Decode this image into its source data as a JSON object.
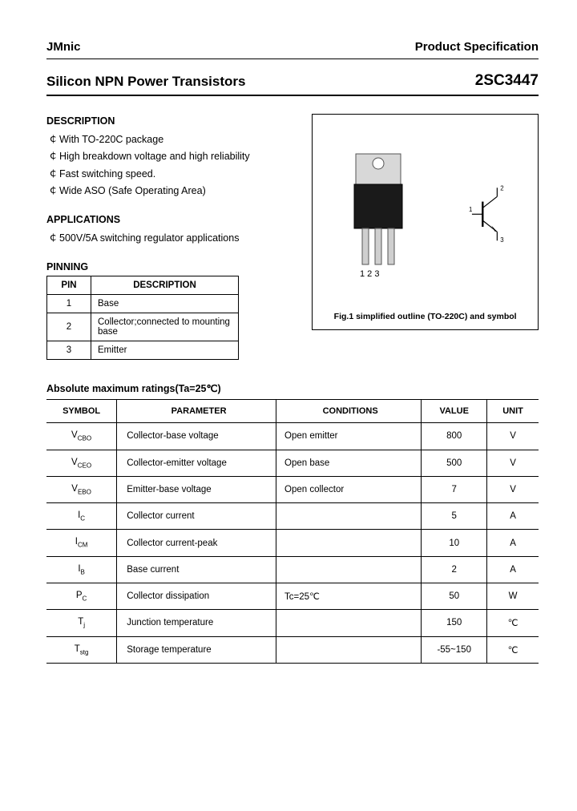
{
  "header": {
    "brand": "JMnic",
    "spec_label": "Product Specification"
  },
  "title_row": {
    "title": "Silicon NPN Power Transistors",
    "part": "2SC3447"
  },
  "description": {
    "heading": "DESCRIPTION",
    "items": [
      "With TO-220C package",
      "High breakdown voltage and high reliability",
      "Fast switching speed.",
      "Wide ASO (Safe Operating Area)"
    ]
  },
  "applications": {
    "heading": "APPLICATIONS",
    "items": [
      "500V/5A switching regulator applications"
    ]
  },
  "pinning": {
    "heading": "PINNING",
    "columns": [
      "PIN",
      "DESCRIPTION"
    ],
    "rows": [
      {
        "pin": "1",
        "desc": "Base"
      },
      {
        "pin": "2",
        "desc": "Collector;connected to mounting base"
      },
      {
        "pin": "3",
        "desc": "Emitter"
      }
    ]
  },
  "figure": {
    "caption": "Fig.1 simplified outline (TO-220C) and symbol",
    "pin_labels": "1  2  3",
    "sym_labels": {
      "b": "1",
      "c": "2",
      "e": "3"
    },
    "package_colors": {
      "body": "#1a1a1a",
      "tab": "#d8d8d8",
      "lead": "#cfcfcf"
    }
  },
  "abs_ratings": {
    "title": "Absolute maximum ratings(Ta=25℃)",
    "columns": [
      "SYMBOL",
      "PARAMETER",
      "CONDITIONS",
      "VALUE",
      "UNIT"
    ],
    "rows": [
      {
        "sym": "V",
        "sub": "CBO",
        "param": "Collector-base voltage",
        "cond": "Open emitter",
        "val": "800",
        "unit": "V"
      },
      {
        "sym": "V",
        "sub": "CEO",
        "param": "Collector-emitter voltage",
        "cond": "Open base",
        "val": "500",
        "unit": "V"
      },
      {
        "sym": "V",
        "sub": "EBO",
        "param": "Emitter-base voltage",
        "cond": "Open collector",
        "val": "7",
        "unit": "V"
      },
      {
        "sym": "I",
        "sub": "C",
        "param": "Collector current",
        "cond": "",
        "val": "5",
        "unit": "A"
      },
      {
        "sym": "I",
        "sub": "CM",
        "param": "Collector current-peak",
        "cond": "",
        "val": "10",
        "unit": "A"
      },
      {
        "sym": "I",
        "sub": "B",
        "param": "Base current",
        "cond": "",
        "val": "2",
        "unit": "A"
      },
      {
        "sym": "P",
        "sub": "C",
        "param": "Collector dissipation",
        "cond": "Tc=25℃",
        "val": "50",
        "unit": "W"
      },
      {
        "sym": "T",
        "sub": "j",
        "param": "Junction temperature",
        "cond": "",
        "val": "150",
        "unit": "℃"
      },
      {
        "sym": "T",
        "sub": "stg",
        "param": "Storage temperature",
        "cond": "",
        "val": "-55~150",
        "unit": "℃"
      }
    ]
  }
}
